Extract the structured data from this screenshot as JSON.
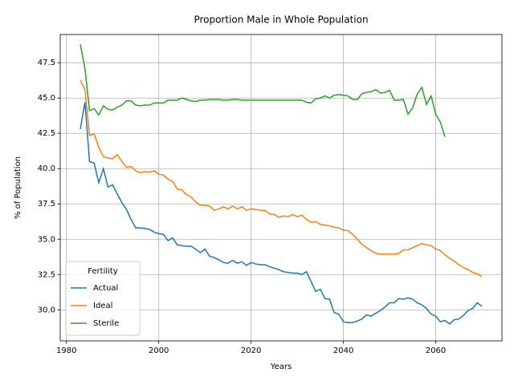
{
  "chart_data": {
    "type": "line",
    "title": "Proportion Male in Whole Population",
    "xlabel": "Years",
    "ylabel": "% of Population",
    "x": [
      1983,
      1984,
      1985,
      1986,
      1987,
      1988,
      1989,
      1990,
      1991,
      1992,
      1993,
      1994,
      1995,
      1996,
      1997,
      1998,
      1999,
      2000,
      2001,
      2002,
      2003,
      2004,
      2005,
      2006,
      2007,
      2008,
      2009,
      2010,
      2011,
      2012,
      2013,
      2014,
      2015,
      2016,
      2017,
      2018,
      2019,
      2020,
      2021,
      2022,
      2023,
      2024,
      2025,
      2026,
      2027,
      2028,
      2029,
      2030,
      2031,
      2032,
      2033,
      2034,
      2035,
      2036,
      2037,
      2038,
      2039,
      2040,
      2041,
      2042,
      2043,
      2044,
      2045,
      2046,
      2047,
      2048,
      2049,
      2050,
      2051,
      2052,
      2053,
      2054,
      2055,
      2056,
      2057,
      2058,
      2059,
      2060,
      2061,
      2062,
      2063,
      2064,
      2065,
      2066,
      2067,
      2068,
      2069,
      2070
    ],
    "series": [
      {
        "name": "Actual",
        "color": "#1f77b4",
        "values": [
          42.8,
          44.7,
          40.5,
          40.4,
          39.0,
          40.0,
          38.7,
          38.85,
          38.2,
          37.6,
          37.1,
          36.4,
          35.8,
          35.8,
          35.75,
          35.7,
          35.5,
          35.4,
          35.35,
          34.9,
          35.1,
          34.6,
          34.55,
          34.5,
          34.5,
          34.3,
          34.05,
          34.3,
          33.8,
          33.7,
          33.55,
          33.35,
          33.3,
          33.5,
          33.3,
          33.4,
          33.15,
          33.35,
          33.25,
          33.2,
          33.2,
          33.05,
          32.95,
          32.85,
          32.7,
          32.65,
          32.6,
          32.6,
          32.5,
          32.7,
          32.0,
          31.3,
          31.45,
          30.8,
          30.75,
          29.8,
          29.7,
          29.15,
          29.1,
          29.1,
          29.2,
          29.35,
          29.65,
          29.55,
          29.75,
          29.95,
          30.2,
          30.5,
          30.5,
          30.8,
          30.75,
          30.85,
          30.75,
          30.5,
          30.35,
          30.1,
          29.7,
          29.55,
          29.15,
          29.25,
          29.0,
          29.3,
          29.35,
          29.6,
          29.95,
          30.1,
          30.5,
          30.25
        ]
      },
      {
        "name": "Ideal",
        "color": "#ff7f0e",
        "values": [
          46.25,
          45.6,
          42.35,
          42.45,
          41.5,
          40.85,
          40.75,
          40.7,
          41.0,
          40.5,
          40.1,
          40.15,
          39.85,
          39.7,
          39.8,
          39.75,
          39.85,
          39.6,
          39.55,
          39.25,
          39.1,
          38.55,
          38.5,
          38.15,
          38.0,
          37.65,
          37.4,
          37.4,
          37.35,
          37.05,
          37.15,
          37.3,
          37.15,
          37.35,
          37.15,
          37.3,
          37.05,
          37.15,
          37.1,
          37.05,
          37.05,
          36.8,
          36.75,
          36.55,
          36.65,
          36.6,
          36.75,
          36.6,
          36.7,
          36.4,
          36.2,
          36.25,
          36.05,
          36.0,
          35.95,
          35.85,
          35.8,
          35.65,
          35.6,
          35.35,
          35.0,
          34.65,
          34.4,
          34.2,
          34.0,
          33.95,
          33.95,
          33.95,
          33.95,
          34.0,
          34.25,
          34.25,
          34.4,
          34.55,
          34.7,
          34.6,
          34.55,
          34.3,
          34.2,
          33.9,
          33.65,
          33.45,
          33.2,
          33.0,
          32.85,
          32.65,
          32.55,
          32.35
        ]
      },
      {
        "name": "Sterile",
        "color": "#2ca02c",
        "values": [
          48.8,
          47.1,
          44.1,
          44.25,
          43.8,
          44.45,
          44.2,
          44.15,
          44.35,
          44.5,
          44.8,
          44.8,
          44.5,
          44.45,
          44.5,
          44.5,
          44.65,
          44.65,
          44.65,
          44.85,
          44.85,
          44.85,
          45.0,
          44.9,
          44.8,
          44.75,
          44.85,
          44.85,
          44.9,
          44.9,
          44.9,
          44.85,
          44.85,
          44.9,
          44.9,
          44.85,
          44.85,
          44.85,
          44.85,
          44.85,
          44.85,
          44.85,
          44.85,
          44.85,
          44.85,
          44.85,
          44.85,
          44.85,
          44.85,
          44.7,
          44.65,
          44.95,
          45.0,
          45.15,
          45.0,
          45.2,
          45.25,
          45.2,
          45.15,
          44.9,
          44.9,
          45.3,
          45.4,
          45.45,
          45.6,
          45.35,
          45.4,
          45.55,
          44.85,
          44.85,
          44.9,
          43.85,
          44.3,
          45.3,
          45.75,
          44.55,
          45.15,
          43.85,
          43.3,
          42.25,
          null,
          null,
          null,
          null,
          null,
          null,
          null,
          null
        ]
      }
    ],
    "xlim": [
      1978.65,
      2074.35
    ],
    "xticks": [
      1980,
      2000,
      2020,
      2040,
      2060
    ],
    "ylim": [
      27.8,
      49.5
    ],
    "yticks": [
      {
        "value": 30,
        "label": "30.0"
      },
      32.5,
      {
        "value": 35,
        "label": "35.0"
      },
      37.5,
      {
        "value": 40,
        "label": "40.0"
      },
      42.5,
      {
        "value": 45,
        "label": "45.0"
      },
      47.5
    ],
    "grid": true,
    "legend_title": "Fertility",
    "legend_loc": "lower left"
  }
}
